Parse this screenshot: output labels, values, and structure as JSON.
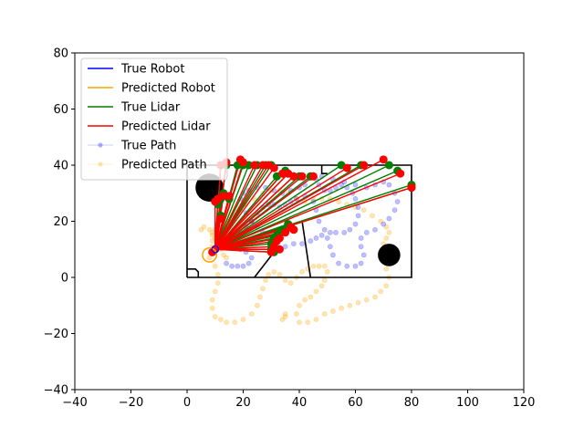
{
  "chart_data": {
    "type": "line",
    "title": "",
    "xlabel": "",
    "ylabel": "",
    "xlim": [
      -40,
      120
    ],
    "ylim": [
      -40,
      80
    ],
    "xticks": [
      -40,
      -20,
      0,
      20,
      40,
      60,
      80,
      100,
      120
    ],
    "yticks": [
      -40,
      -20,
      0,
      20,
      40,
      60,
      80
    ],
    "grid": false,
    "legend_position": "upper-left",
    "legend": [
      {
        "label": "True Robot",
        "color": "#0000ff",
        "style": "line"
      },
      {
        "label": "Predicted Robot",
        "color": "#ffa500",
        "style": "line"
      },
      {
        "label": "True Lidar",
        "color": "#008000",
        "style": "line"
      },
      {
        "label": "Predicted Lidar",
        "color": "#ff0000",
        "style": "line"
      },
      {
        "label": "True Path",
        "color": "#0000ff",
        "style": "dots"
      },
      {
        "label": "Predicted Path",
        "color": "#ffa500",
        "style": "dots"
      }
    ],
    "walls": [
      [
        [
          0,
          0
        ],
        [
          80,
          0
        ],
        [
          80,
          40
        ],
        [
          0,
          40
        ],
        [
          0,
          0
        ]
      ],
      [
        [
          0,
          3
        ],
        [
          3,
          3
        ],
        [
          4,
          2
        ],
        [
          4,
          0
        ]
      ],
      [
        [
          48,
          40
        ],
        [
          48,
          37
        ],
        [
          50,
          37
        ]
      ],
      [
        [
          24,
          0
        ],
        [
          31,
          9
        ]
      ],
      [
        [
          41,
          20
        ],
        [
          44,
          0
        ]
      ]
    ],
    "obstacles": [
      {
        "x": 8,
        "y": 32,
        "r": 5
      },
      {
        "x": 72,
        "y": 8,
        "r": 4
      }
    ],
    "true_robot": {
      "x": 10,
      "y": 10,
      "r": 1.2
    },
    "predicted_robot": {
      "x": 8,
      "y": 8,
      "r": 2.5
    },
    "true_lidar_endpoints": [
      [
        12,
        28
      ],
      [
        11,
        26
      ],
      [
        12,
        40
      ],
      [
        14,
        40
      ],
      [
        18,
        40
      ],
      [
        20,
        40
      ],
      [
        22,
        40
      ],
      [
        25,
        40
      ],
      [
        28,
        40
      ],
      [
        30,
        40
      ],
      [
        32,
        36
      ],
      [
        35,
        38
      ],
      [
        36,
        37
      ],
      [
        38,
        36
      ],
      [
        40,
        36
      ],
      [
        44,
        36
      ],
      [
        55,
        40
      ],
      [
        62,
        40
      ],
      [
        72,
        40
      ],
      [
        75,
        38
      ],
      [
        80,
        33
      ],
      [
        80,
        32
      ],
      [
        36,
        19
      ],
      [
        34,
        17
      ],
      [
        33,
        16
      ],
      [
        32,
        15
      ],
      [
        31,
        14
      ],
      [
        30,
        12
      ],
      [
        30,
        10
      ],
      [
        31,
        9
      ],
      [
        38,
        17
      ],
      [
        12,
        22
      ],
      [
        15,
        28
      ],
      [
        13,
        30
      ]
    ],
    "predicted_lidar_endpoints": [
      [
        11,
        28
      ],
      [
        10,
        27
      ],
      [
        12,
        40
      ],
      [
        14,
        41
      ],
      [
        19,
        42
      ],
      [
        20,
        41
      ],
      [
        24,
        40
      ],
      [
        27,
        40
      ],
      [
        29,
        40
      ],
      [
        31,
        39
      ],
      [
        34,
        37
      ],
      [
        36,
        37
      ],
      [
        38,
        36
      ],
      [
        41,
        36
      ],
      [
        45,
        36
      ],
      [
        57,
        39
      ],
      [
        63,
        40
      ],
      [
        70,
        42
      ],
      [
        76,
        37
      ],
      [
        80,
        32
      ],
      [
        37,
        18
      ],
      [
        35,
        16
      ],
      [
        33,
        14
      ],
      [
        32,
        13
      ],
      [
        31,
        11
      ],
      [
        30,
        9
      ],
      [
        33,
        10
      ],
      [
        38,
        17
      ],
      [
        12,
        21
      ],
      [
        15,
        29
      ],
      [
        13,
        29
      ],
      [
        10,
        10
      ],
      [
        9,
        9
      ]
    ],
    "true_path": [
      [
        14,
        5
      ],
      [
        16,
        4
      ],
      [
        18,
        4
      ],
      [
        20,
        4
      ],
      [
        22,
        5
      ],
      [
        23,
        7
      ],
      [
        21,
        9
      ],
      [
        19,
        10
      ],
      [
        18,
        13
      ],
      [
        19,
        16
      ],
      [
        21,
        18
      ],
      [
        23,
        20
      ],
      [
        25,
        23
      ],
      [
        27,
        25
      ],
      [
        29,
        26
      ],
      [
        31,
        26
      ],
      [
        33,
        25
      ],
      [
        35,
        26
      ],
      [
        37,
        27
      ],
      [
        39,
        28
      ],
      [
        42,
        29
      ],
      [
        45,
        27
      ],
      [
        46,
        24
      ],
      [
        47,
        20
      ],
      [
        49,
        17
      ],
      [
        51,
        16
      ],
      [
        53,
        16
      ],
      [
        56,
        16
      ],
      [
        58,
        17
      ],
      [
        60,
        19
      ],
      [
        61,
        22
      ],
      [
        61,
        25
      ],
      [
        60,
        28
      ],
      [
        59,
        30
      ],
      [
        57,
        32
      ],
      [
        55,
        33
      ],
      [
        53,
        32
      ],
      [
        51,
        31
      ],
      [
        49,
        31
      ],
      [
        47,
        33
      ],
      [
        46,
        35
      ],
      [
        48,
        36
      ],
      [
        52,
        35
      ],
      [
        56,
        34
      ],
      [
        60,
        33
      ],
      [
        64,
        32
      ],
      [
        67,
        33
      ],
      [
        70,
        34
      ],
      [
        72,
        33
      ],
      [
        74,
        30
      ],
      [
        75,
        27
      ],
      [
        74,
        24
      ],
      [
        72,
        21
      ],
      [
        70,
        19
      ],
      [
        67,
        17
      ],
      [
        64,
        16
      ],
      [
        62,
        14
      ],
      [
        62,
        11
      ],
      [
        63,
        8
      ],
      [
        62,
        5
      ],
      [
        60,
        4
      ],
      [
        57,
        4
      ],
      [
        54,
        5
      ],
      [
        52,
        8
      ],
      [
        51,
        11
      ],
      [
        50,
        14
      ],
      [
        48,
        15
      ],
      [
        46,
        14
      ],
      [
        44,
        13
      ],
      [
        41,
        12
      ],
      [
        38,
        12
      ],
      [
        35,
        11
      ],
      [
        32,
        12
      ],
      [
        29,
        14
      ],
      [
        27,
        16
      ],
      [
        25,
        18
      ],
      [
        23,
        20
      ],
      [
        21,
        23
      ],
      [
        20,
        26
      ],
      [
        19,
        28
      ],
      [
        20,
        30
      ],
      [
        22,
        31
      ],
      [
        25,
        32
      ],
      [
        28,
        32
      ],
      [
        31,
        31
      ],
      [
        34,
        30
      ],
      [
        37,
        31
      ],
      [
        40,
        32
      ],
      [
        42,
        33
      ]
    ],
    "predicted_path": [
      [
        5,
        17
      ],
      [
        6,
        18
      ],
      [
        8,
        17
      ],
      [
        9,
        15
      ],
      [
        9,
        13
      ],
      [
        9,
        11
      ],
      [
        9,
        9
      ],
      [
        8,
        7
      ],
      [
        10,
        4
      ],
      [
        11,
        1
      ],
      [
        11,
        -2
      ],
      [
        10,
        -5
      ],
      [
        9,
        -8
      ],
      [
        9,
        -11
      ],
      [
        10,
        -14
      ],
      [
        12,
        -15
      ],
      [
        14,
        -16
      ],
      [
        17,
        -16
      ],
      [
        20,
        -15
      ],
      [
        23,
        -13
      ],
      [
        25,
        -10
      ],
      [
        26,
        -7
      ],
      [
        27,
        -4
      ],
      [
        28,
        -1
      ],
      [
        29,
        1
      ],
      [
        31,
        2
      ],
      [
        33,
        1
      ],
      [
        35,
        -1
      ],
      [
        37,
        -2
      ],
      [
        39,
        0
      ],
      [
        41,
        2
      ],
      [
        43,
        3
      ],
      [
        45,
        4
      ],
      [
        47,
        4
      ],
      [
        49,
        4
      ],
      [
        50,
        2
      ],
      [
        49,
        -1
      ],
      [
        48,
        -3
      ],
      [
        46,
        -5
      ],
      [
        44,
        -7
      ],
      [
        42,
        -8
      ],
      [
        40,
        -10
      ],
      [
        39,
        -13
      ],
      [
        40,
        -16
      ],
      [
        43,
        -16
      ],
      [
        46,
        -15
      ],
      [
        49,
        -13
      ],
      [
        52,
        -12
      ],
      [
        55,
        -11
      ],
      [
        58,
        -10
      ],
      [
        61,
        -9
      ],
      [
        64,
        -8
      ],
      [
        67,
        -7
      ],
      [
        69,
        -5
      ],
      [
        71,
        -3
      ],
      [
        72,
        0
      ],
      [
        71,
        3
      ],
      [
        70,
        6
      ],
      [
        69,
        9
      ],
      [
        70,
        12
      ],
      [
        71,
        14
      ],
      [
        72,
        16
      ],
      [
        71,
        18
      ],
      [
        69,
        20
      ],
      [
        66,
        22
      ],
      [
        63,
        24
      ],
      [
        60,
        25
      ],
      [
        57,
        26
      ],
      [
        54,
        27
      ],
      [
        51,
        28
      ],
      [
        48,
        28
      ],
      [
        45,
        28
      ],
      [
        42,
        27
      ],
      [
        39,
        28
      ],
      [
        36,
        30
      ],
      [
        33,
        31
      ],
      [
        30,
        31
      ],
      [
        27,
        30
      ],
      [
        24,
        28
      ],
      [
        21,
        26
      ],
      [
        19,
        24
      ],
      [
        17,
        22
      ],
      [
        15,
        20
      ],
      [
        13,
        19
      ],
      [
        11,
        18
      ],
      [
        10,
        17
      ],
      [
        9,
        16
      ],
      [
        10,
        14
      ],
      [
        11,
        12
      ],
      [
        12,
        10
      ],
      [
        13,
        8
      ],
      [
        14,
        7
      ],
      [
        35,
        -13
      ],
      [
        35,
        -14
      ],
      [
        34,
        -15
      ]
    ]
  }
}
